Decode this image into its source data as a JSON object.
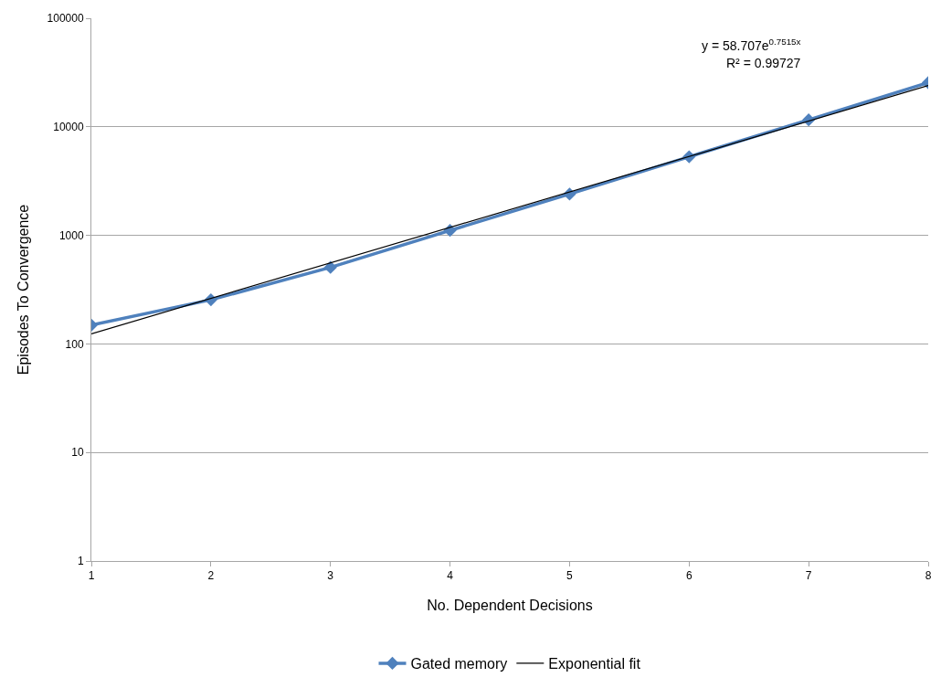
{
  "chart_data": {
    "type": "line",
    "xlabel": "No. Dependent Decisions",
    "ylabel": "Episodes To Convergence",
    "x": [
      1,
      2,
      3,
      4,
      5,
      6,
      7,
      8
    ],
    "series": [
      {
        "name": "Gated memory",
        "color": "#4f81bd",
        "values": [
          149,
          255,
          507,
          1110,
          2400,
          5300,
          11600,
          25500
        ],
        "marker": "diamond",
        "line_style": "solid"
      },
      {
        "name": "Exponential fit",
        "color": "#000000",
        "type": "line",
        "x": [
          1,
          8
        ],
        "values": [
          124,
          23970
        ],
        "marker": "none",
        "line_style": "solid"
      }
    ],
    "log": "y",
    "xlim": [
      1,
      8
    ],
    "xticks": [
      1,
      2,
      3,
      4,
      5,
      6,
      7,
      8
    ],
    "ylim": [
      1,
      100000
    ],
    "yticks": [
      1,
      10,
      100,
      1000,
      10000,
      100000
    ],
    "grid": "y",
    "legend": "bottom",
    "annotations": [
      "y = 58.707e$^{0.7515x}$",
      "R² = 0.99727"
    ]
  }
}
